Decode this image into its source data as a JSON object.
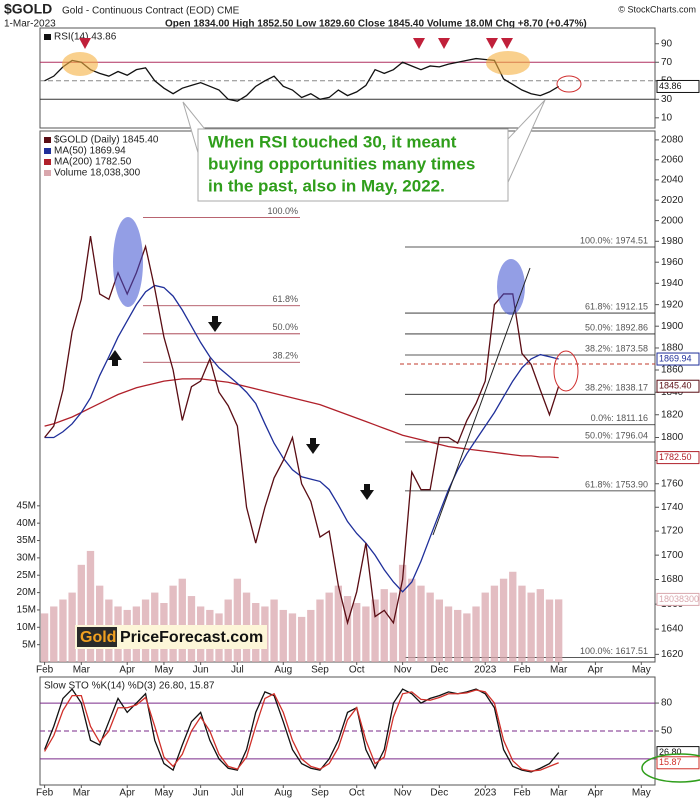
{
  "header": {
    "symbol": "$GOLD",
    "name": "Gold - Continuous Contract (EOD) CME",
    "date": "1-Mar-2023",
    "quote": "Open 1834.00 High 1852.50 Low 1829.60 Close 1845.40 Volume 18.0M Chg +8.70 (+0.47%)",
    "credit": "© StockCharts.com"
  },
  "callout": [
    "When RSI touched 30, it meant",
    "buying opportunities many times",
    "in the past, also in May, 2022."
  ],
  "logo": [
    "Gold",
    "PriceForecast.com"
  ],
  "chart_data": [
    {
      "type": "line",
      "ylim": [
        -1,
        107
      ],
      "yticks": [
        10,
        30,
        50,
        70,
        90
      ],
      "ref_lines": [
        {
          "value": 70,
          "color": "#b03060"
        },
        {
          "value": 50,
          "color": "#888",
          "dash": true
        },
        {
          "value": 30,
          "color": "#333"
        }
      ],
      "series": [
        {
          "name": "RSI(14) 43.86",
          "color": "#111",
          "last_label": "43.86",
          "values": [
            50,
            55,
            65,
            72,
            70,
            62,
            58,
            55,
            60,
            56,
            62,
            64,
            50,
            42,
            36,
            42,
            45,
            48,
            44,
            40,
            30,
            28,
            34,
            44,
            50,
            55,
            44,
            40,
            32,
            36,
            30,
            32,
            40,
            34,
            38,
            45,
            62,
            58,
            62,
            70,
            66,
            62,
            66,
            65,
            68,
            70,
            72,
            74,
            73,
            72,
            52,
            46,
            40,
            36,
            34,
            38,
            43.86,
            null,
            null,
            null,
            null,
            null,
            null,
            null,
            null,
            null,
            null
          ]
        }
      ]
    },
    {
      "type": "line",
      "log": true,
      "ylim": [
        1614,
        2089
      ],
      "yticks": [
        1620,
        1640,
        1660,
        1680,
        1700,
        1720,
        1740,
        1760,
        1780,
        1800,
        1820,
        1840,
        1860,
        1880,
        1900,
        1920,
        1940,
        1960,
        1980,
        2000,
        2020,
        2040,
        2060,
        2080
      ],
      "y2lim": [
        0,
        153
      ],
      "y2ticks": [
        {
          "value": 5,
          "label": "5M"
        },
        {
          "value": 10,
          "label": "10M"
        },
        {
          "value": 15,
          "label": "15M"
        },
        {
          "value": 20,
          "label": "20M"
        },
        {
          "value": 25,
          "label": "25M"
        },
        {
          "value": 30,
          "label": "30M"
        },
        {
          "value": 35,
          "label": "35M"
        },
        {
          "value": 40,
          "label": "40M"
        },
        {
          "value": 45,
          "label": "45M"
        }
      ],
      "categories": [
        "Feb",
        null,
        null,
        null,
        "Mar",
        null,
        null,
        null,
        null,
        "Apr",
        null,
        null,
        null,
        "May",
        null,
        null,
        null,
        "Jun",
        null,
        null,
        null,
        "Jul",
        null,
        null,
        null,
        null,
        "Aug",
        null,
        null,
        null,
        "Sep",
        null,
        null,
        null,
        "Oct",
        null,
        null,
        null,
        null,
        "Nov",
        null,
        null,
        null,
        "Dec",
        null,
        null,
        null,
        null,
        "2023",
        null,
        null,
        null,
        "Feb",
        null,
        null,
        null,
        "Mar",
        null,
        null,
        null,
        "Apr",
        null,
        null,
        null,
        null,
        "May",
        null
      ],
      "series": [
        {
          "name": "Volume 18,038,300",
          "type": "bar",
          "axis": "y2",
          "color": "#d9a7ad",
          "last_label": "18038300",
          "values": [
            14,
            16,
            18,
            20,
            28,
            32,
            22,
            18,
            16,
            15,
            16,
            18,
            20,
            17,
            22,
            24,
            19,
            16,
            15,
            14,
            18,
            24,
            20,
            17,
            16,
            18,
            15,
            14,
            13,
            15,
            18,
            20,
            22,
            19,
            17,
            16,
            18,
            21,
            20,
            28,
            24,
            22,
            20,
            18,
            16,
            15,
            14,
            16,
            20,
            22,
            24,
            26,
            22,
            20,
            21,
            18,
            18.0383,
            null,
            null,
            null,
            null,
            null,
            null,
            null,
            null,
            null,
            null
          ]
        },
        {
          "name": "MA(200) 1782.50",
          "color": "#b0202a",
          "last_label": "1782.50",
          "values": [
            1810,
            1812,
            1815,
            1818,
            1822,
            1826,
            1830,
            1834,
            1838,
            1841,
            1844,
            1846,
            1848,
            1850,
            1851,
            1852,
            1852,
            1852,
            1851,
            1850,
            1849,
            1847,
            1845,
            1843,
            1841,
            1839,
            1837,
            1835,
            1833,
            1831,
            1829,
            1826,
            1823,
            1820,
            1817,
            1814,
            1811,
            1808,
            1805,
            1802,
            1800,
            1798,
            1796,
            1794,
            1792,
            1791,
            1790,
            1789,
            1788,
            1787,
            1786,
            1785,
            1784,
            1784,
            1783,
            1783,
            1782.5,
            null,
            null,
            null,
            null,
            null,
            null,
            null,
            null,
            null,
            null
          ]
        },
        {
          "name": "MA(50) 1869.94",
          "color": "#1f2f9a",
          "last_label": "1869.94",
          "values": [
            1800,
            1800,
            1805,
            1812,
            1822,
            1835,
            1855,
            1872,
            1890,
            1905,
            1920,
            1932,
            1938,
            1936,
            1928,
            1915,
            1900,
            1885,
            1872,
            1862,
            1855,
            1848,
            1840,
            1830,
            1812,
            1795,
            1782,
            1772,
            1766,
            1764,
            1762,
            1755,
            1742,
            1728,
            1718,
            1710,
            1700,
            1688,
            1678,
            1670,
            1678,
            1695,
            1715,
            1735,
            1755,
            1772,
            1786,
            1798,
            1810,
            1822,
            1836,
            1850,
            1862,
            1870,
            1874,
            1872,
            1869.94,
            null,
            null,
            null,
            null,
            null,
            null,
            null,
            null,
            null,
            null
          ]
        },
        {
          "name": "$GOLD (Daily) 1845.40",
          "color": "#5a0d14",
          "last_label": "1845.40",
          "values": [
            1800,
            1810,
            1842,
            1895,
            1925,
            1985,
            1930,
            1925,
            1950,
            1930,
            1950,
            1975,
            1935,
            1890,
            1860,
            1815,
            1845,
            1850,
            1870,
            1840,
            1828,
            1810,
            1740,
            1710,
            1740,
            1765,
            1780,
            1800,
            1760,
            1745,
            1715,
            1720,
            1675,
            1645,
            1670,
            1710,
            1650,
            1655,
            1645,
            1680,
            1770,
            1755,
            1755,
            1800,
            1800,
            1795,
            1815,
            1830,
            1850,
            1920,
            1930,
            1930,
            1875,
            1865,
            1842,
            1820,
            1845.4,
            null,
            null,
            null,
            null,
            null,
            null,
            null,
            null,
            null,
            null
          ]
        }
      ],
      "fib_left": [
        {
          "value": 2003,
          "label": "100.0%"
        },
        {
          "value": 1919,
          "label": "61.8%"
        },
        {
          "value": 1893,
          "label": "50.0%"
        },
        {
          "value": 1867,
          "label": "38.2%"
        }
      ],
      "fib_right": [
        {
          "value": 1974.51,
          "label": "100.0%: 1974.51"
        },
        {
          "value": 1912.15,
          "label": "61.8%: 1912.15"
        },
        {
          "value": 1892.86,
          "label": "50.0%: 1892.86"
        },
        {
          "value": 1873.58,
          "label": "38.2%: 1873.58"
        },
        {
          "value": 1838.17,
          "label": "38.2%: 1838.17"
        },
        {
          "value": 1811.16,
          "label": "0.0%: 1811.16"
        },
        {
          "value": 1796.04,
          "label": "50.0%: 1796.04"
        },
        {
          "value": 1753.9,
          "label": "61.8%: 1753.90"
        },
        {
          "value": 1617.51,
          "label": "100.0%: 1617.51"
        }
      ]
    },
    {
      "type": "line",
      "title": "Slow STO %K(14) %D(3) 26.80, 15.87",
      "ylim": [
        -8,
        108
      ],
      "yticks": [
        20,
        50,
        80
      ],
      "ref_lines": [
        {
          "value": 80,
          "color": "#7a2a8a"
        },
        {
          "value": 50,
          "color": "#7a2a8a",
          "dash": true
        },
        {
          "value": 20,
          "color": "#7a2a8a"
        }
      ],
      "categories": [
        "Feb",
        null,
        null,
        null,
        "Mar",
        null,
        null,
        null,
        null,
        "Apr",
        null,
        null,
        null,
        "May",
        null,
        null,
        null,
        "Jun",
        null,
        null,
        null,
        "Jul",
        null,
        null,
        null,
        null,
        "Aug",
        null,
        null,
        null,
        "Sep",
        null,
        null,
        null,
        "Oct",
        null,
        null,
        null,
        null,
        "Nov",
        null,
        null,
        null,
        "Dec",
        null,
        null,
        null,
        null,
        "2023",
        null,
        null,
        null,
        "Feb",
        null,
        null,
        null,
        "Mar",
        null,
        null,
        null,
        "Apr",
        null,
        null,
        null,
        null,
        "May",
        null
      ],
      "series": [
        {
          "color": "#111",
          "last_label": "26.80",
          "values": [
            30,
            55,
            85,
            95,
            80,
            40,
            35,
            60,
            85,
            70,
            80,
            90,
            40,
            15,
            8,
            35,
            60,
            70,
            40,
            20,
            10,
            8,
            30,
            70,
            92,
            88,
            60,
            30,
            15,
            10,
            8,
            20,
            40,
            70,
            75,
            30,
            10,
            30,
            80,
            95,
            90,
            80,
            85,
            88,
            92,
            90,
            92,
            95,
            90,
            75,
            30,
            12,
            8,
            6,
            10,
            15,
            26.8,
            null,
            null,
            null,
            null,
            null,
            null,
            null,
            null,
            null,
            null
          ]
        },
        {
          "color": "#d0302a",
          "last_label": "15.87",
          "values": [
            28,
            45,
            72,
            88,
            88,
            55,
            38,
            50,
            75,
            75,
            78,
            86,
            55,
            22,
            12,
            25,
            50,
            65,
            50,
            25,
            12,
            9,
            22,
            55,
            85,
            90,
            70,
            40,
            20,
            12,
            9,
            15,
            32,
            62,
            75,
            40,
            15,
            22,
            65,
            90,
            92,
            84,
            83,
            86,
            90,
            90,
            91,
            94,
            92,
            80,
            40,
            18,
            9,
            7,
            8,
            12,
            15.87,
            null,
            null,
            null,
            null,
            null,
            null,
            null,
            null,
            null,
            null
          ]
        }
      ]
    }
  ]
}
